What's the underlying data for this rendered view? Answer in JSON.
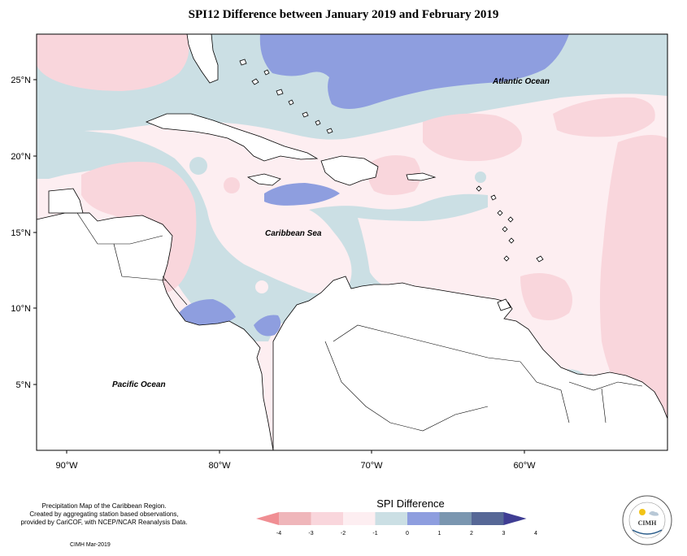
{
  "title": "SPI12 Difference between January 2019 and February 2019",
  "axes": {
    "lat_labels": [
      "25°N",
      "20°N",
      "15°N",
      "10°N",
      "5°N"
    ],
    "lon_labels": [
      "90°W",
      "80°W",
      "70°W",
      "60°W"
    ]
  },
  "places": {
    "atlantic": "Atlantic Ocean",
    "caribbean": "Caribbean Sea",
    "pacific": "Pacific Ocean"
  },
  "legend": {
    "title": "SPI Difference",
    "ticks": [
      "-4",
      "-3",
      "-2",
      "-1",
      "0",
      "1",
      "2",
      "3",
      "4"
    ],
    "colors": [
      "#f08e93",
      "#efb6ba",
      "#f9d6dc",
      "#fdeef1",
      "#cbdfe4",
      "#8e9edf",
      "#7a96b0",
      "#566796",
      "#3f3d93"
    ]
  },
  "footnote": {
    "line1": "Precipitation Map of the Caribbean Region.",
    "line2": "Created by aggregating station based observations,",
    "line3": "provided by CariCOF, with NCEP/NCAR Reanalysis Data."
  },
  "credit": "CIMH Mar-2019",
  "logo": {
    "text": "CIMH"
  }
}
